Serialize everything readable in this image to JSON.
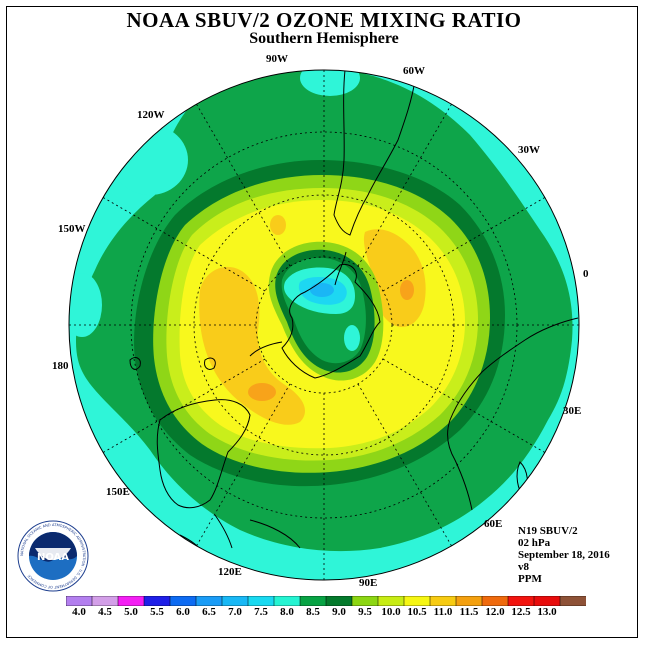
{
  "title": "NOAA SBUV/2 OZONE MIXING RATIO",
  "subtitle": "Southern Hemisphere",
  "longitude_labels": {
    "lon_90w": "90W",
    "lon_60w": "60W",
    "lon_30w": "30W",
    "lon_0": "0",
    "lon_30e": "30E",
    "lon_60e": "60E",
    "lon_90e": "90E",
    "lon_120e": "120E",
    "lon_150e": "150E",
    "lon_180": "180",
    "lon_150w": "150W",
    "lon_120w": "120W"
  },
  "info": {
    "satellite": "N19 SBUV/2",
    "level": "02 hPa",
    "date": "September 18, 2016",
    "version": "v8",
    "units": "PPM"
  },
  "colorbar": {
    "ticks": [
      "4.0",
      "4.5",
      "5.0",
      "5.5",
      "6.0",
      "6.5",
      "7.0",
      "7.5",
      "8.0",
      "8.5",
      "9.0",
      "9.5",
      "10.0",
      "10.5",
      "11.0",
      "11.5",
      "12.0",
      "12.5",
      "13.0"
    ],
    "colors": [
      "#b37fef",
      "#d39fe8",
      "#f41ff4",
      "#1f1fe8",
      "#0d6bf2",
      "#1a9cf6",
      "#19b8f5",
      "#19d9f0",
      "#25f4d2",
      "#08a344",
      "#047a2c",
      "#8cd613",
      "#c7ec14",
      "#f6f613",
      "#f7cb12",
      "#f4a00f",
      "#ef6a0d",
      "#f2140f",
      "#e80c0c",
      "#8e5237"
    ]
  },
  "field_colors": {
    "c8_0": "#2ff5d8",
    "c8_5": "#0ea54a",
    "c9_0": "#04792d",
    "c9_5": "#8fd617",
    "c10_0": "#c9ee1b",
    "c10_5": "#f8f81d",
    "c11_0": "#f9cc1a",
    "c11_5": "#f8a31a",
    "c7_5": "#1dd7f2",
    "c7_0": "#1ab6f5"
  },
  "logo": {
    "text": "NOAA",
    "ring_text": "NATIONAL OCEANIC AND ATMOSPHERIC ADMINISTRATION · U.S. DEPARTMENT OF COMMERCE"
  }
}
